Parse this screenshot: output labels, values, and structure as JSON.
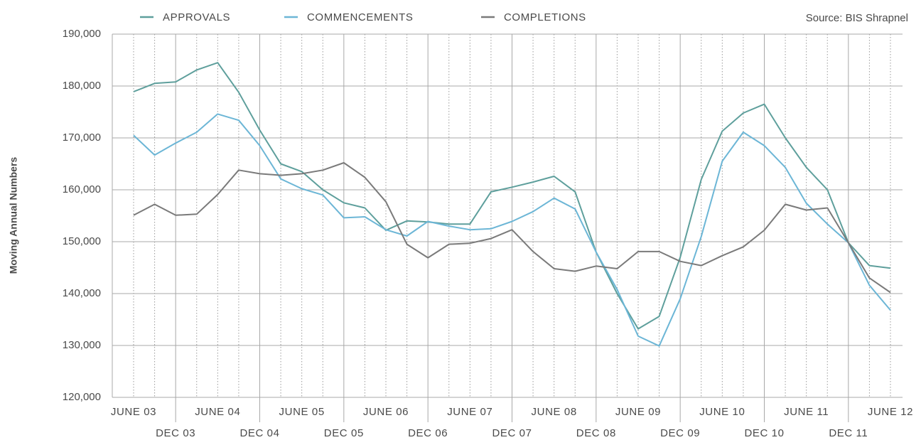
{
  "chart_data": {
    "type": "line",
    "source": "Source: BIS Shrapnel",
    "y_label": "Moving Annual Numbers",
    "categories": [
      "JUNE 03",
      null,
      "DEC 03",
      null,
      "JUNE 04",
      null,
      "DEC 04",
      null,
      "JUNE 05",
      null,
      "DEC 05",
      null,
      "JUNE 06",
      null,
      "DEC 06",
      null,
      "JUNE 07",
      null,
      "DEC 07",
      null,
      "JUNE 08",
      null,
      "DEC 08",
      null,
      "JUNE 09",
      null,
      "DEC 09",
      null,
      "JUNE 10",
      null,
      "DEC 10",
      null,
      "JUNE 11",
      null,
      "DEC 11",
      null,
      "JUNE 12"
    ],
    "series": [
      {
        "name": "APPROVALS",
        "color": "#5e9f9c",
        "values": [
          178900,
          180500,
          180800,
          183100,
          184500,
          178800,
          171500,
          165000,
          163500,
          160000,
          157500,
          156500,
          152200,
          154000,
          153800,
          153400,
          153400,
          159600,
          160500,
          161500,
          162600,
          159600,
          148000,
          140000,
          133200,
          135600,
          147000,
          162000,
          171300,
          174800,
          176500,
          170000,
          164300,
          160000,
          149800,
          145400,
          144900
        ]
      },
      {
        "name": "COMMENCEMENTS",
        "color": "#6cb6d6",
        "values": [
          170500,
          166700,
          169000,
          171100,
          174600,
          173400,
          168500,
          162100,
          160200,
          159000,
          154600,
          154800,
          152300,
          151100,
          153900,
          153000,
          152300,
          152500,
          153900,
          155800,
          158400,
          156300,
          148000,
          140800,
          131800,
          129900,
          139000,
          151000,
          165500,
          171100,
          168500,
          164300,
          157400,
          153400,
          149800,
          141600,
          136800
        ]
      },
      {
        "name": "COMPLETIONS",
        "color": "#7a7a7a",
        "values": [
          155100,
          157200,
          155100,
          155300,
          159100,
          163800,
          163100,
          162800,
          163100,
          163800,
          165200,
          162400,
          157700,
          149500,
          146900,
          149500,
          149700,
          150600,
          152300,
          148100,
          144800,
          144300,
          145300,
          144800,
          148100,
          148100,
          146200,
          145400,
          147300,
          149000,
          152200,
          157200,
          156100,
          156500,
          149800,
          143000,
          140200
        ]
      }
    ],
    "ylim": [
      120000,
      190000
    ],
    "yticks": [
      {
        "value": 120000,
        "label": "120,000"
      },
      {
        "value": 130000,
        "label": "130,000"
      },
      {
        "value": 140000,
        "label": "140,000"
      },
      {
        "value": 150000,
        "label": "150,000"
      },
      {
        "value": 160000,
        "label": "160,000"
      },
      {
        "value": 170000,
        "label": "170,000"
      },
      {
        "value": 180000,
        "label": "180,000"
      },
      {
        "value": 190000,
        "label": "190,000"
      }
    ],
    "grid": true,
    "legend": "top"
  }
}
